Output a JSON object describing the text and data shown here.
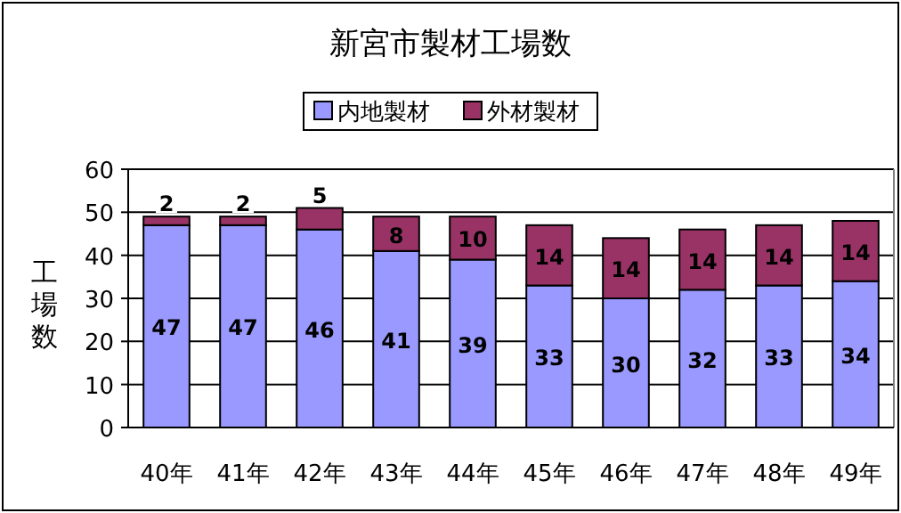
{
  "chart_data": {
    "type": "bar",
    "title": "新宮市製材工場数",
    "ylabel": "工場数",
    "stacked": true,
    "grid": "y",
    "legend": "top",
    "data_labels": true,
    "categories": [
      "40年",
      "41年",
      "42年",
      "43年",
      "44年",
      "45年",
      "46年",
      "47年",
      "48年",
      "49年"
    ],
    "ylim": [
      0,
      60
    ],
    "yticks": [
      0,
      10,
      20,
      30,
      40,
      50,
      60
    ],
    "series": [
      {
        "name": "内地製材",
        "color": "#9999ff",
        "values": [
          47,
          47,
          46,
          41,
          39,
          33,
          30,
          32,
          33,
          34
        ]
      },
      {
        "name": "外材製材",
        "color": "#993366",
        "values": [
          2,
          2,
          5,
          8,
          10,
          14,
          14,
          14,
          14,
          14
        ]
      }
    ]
  }
}
